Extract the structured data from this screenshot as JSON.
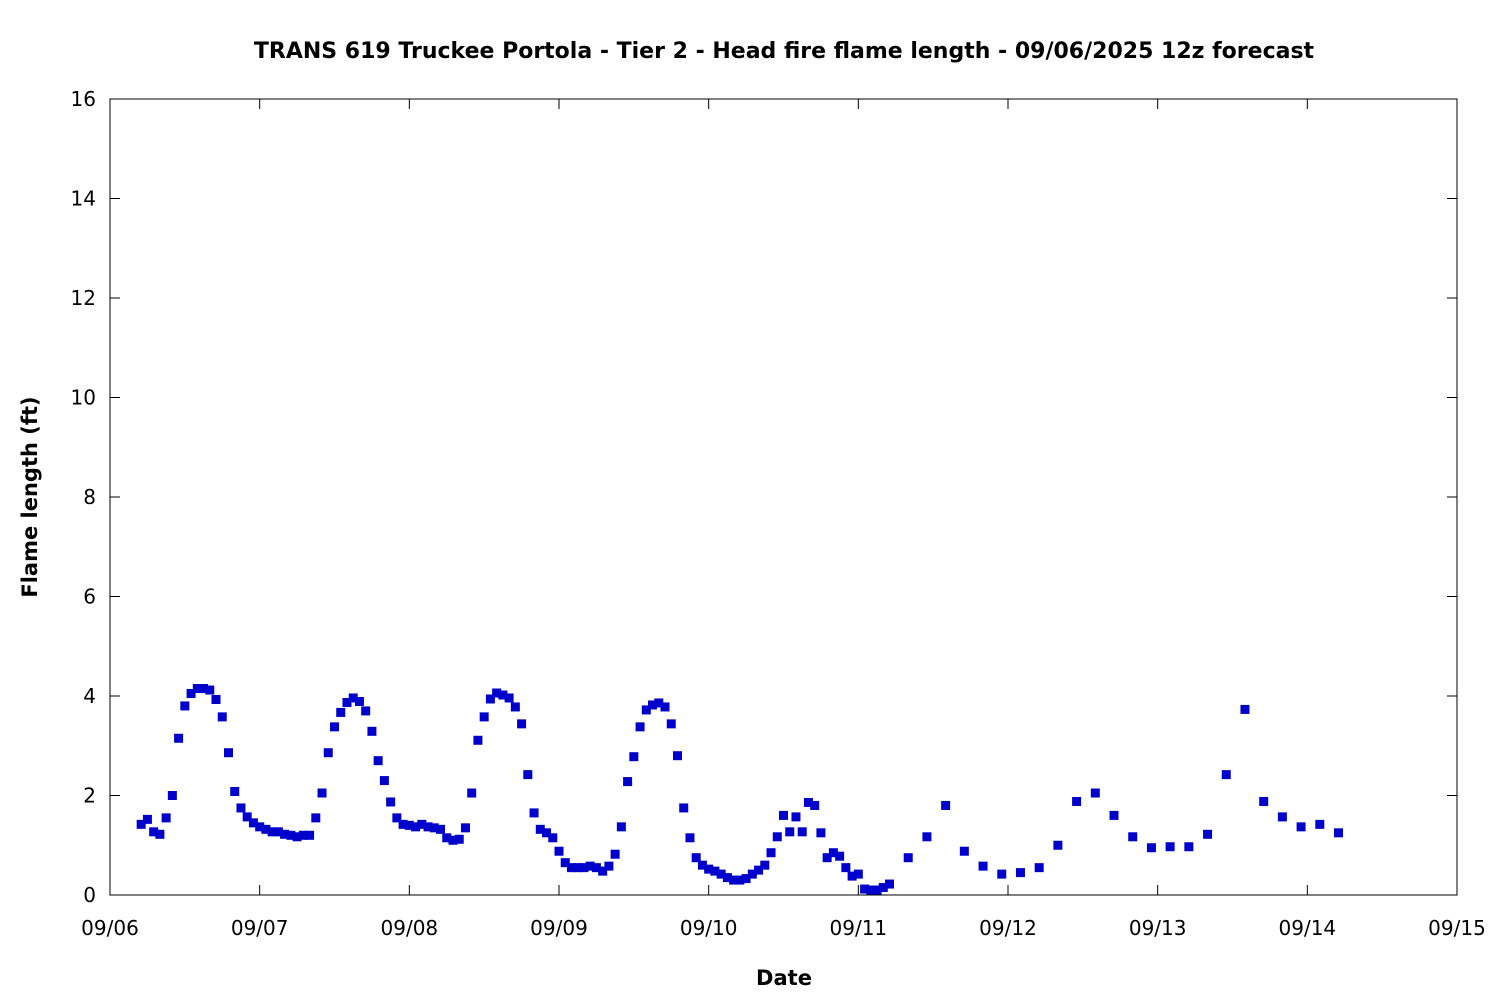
{
  "chart_data": {
    "type": "scatter",
    "title": "TRANS 619 Truckee Portola - Tier 2 - Head fire flame length - 09/06/2025 12z forecast",
    "xlabel": "Date",
    "ylabel": "Flame length (ft)",
    "x_axis_type": "date",
    "xlim": [
      "2025-09-06 00:00",
      "2025-09-15 00:00"
    ],
    "ylim": [
      0,
      16
    ],
    "x_ticks": [
      {
        "value": "2025-09-06",
        "label": "09/06"
      },
      {
        "value": "2025-09-07",
        "label": "09/07"
      },
      {
        "value": "2025-09-08",
        "label": "09/08"
      },
      {
        "value": "2025-09-09",
        "label": "09/09"
      },
      {
        "value": "2025-09-10",
        "label": "09/10"
      },
      {
        "value": "2025-09-11",
        "label": "09/11"
      },
      {
        "value": "2025-09-12",
        "label": "09/12"
      },
      {
        "value": "2025-09-13",
        "label": "09/13"
      },
      {
        "value": "2025-09-14",
        "label": "09/14"
      },
      {
        "value": "2025-09-15",
        "label": "09/15"
      }
    ],
    "y_ticks": [
      0,
      2,
      4,
      6,
      8,
      10,
      12,
      14,
      16
    ],
    "grid": false,
    "marker_color": "#0000cc",
    "series": [
      {
        "points": [
          [
            "2025-09-06 05:00",
            1.42
          ],
          [
            "2025-09-06 06:00",
            1.52
          ],
          [
            "2025-09-06 07:00",
            1.27
          ],
          [
            "2025-09-06 08:00",
            1.22
          ],
          [
            "2025-09-06 09:00",
            1.55
          ],
          [
            "2025-09-06 10:00",
            2.0
          ],
          [
            "2025-09-06 11:00",
            3.15
          ],
          [
            "2025-09-06 12:00",
            3.8
          ],
          [
            "2025-09-06 13:00",
            4.05
          ],
          [
            "2025-09-06 14:00",
            4.15
          ],
          [
            "2025-09-06 15:00",
            4.15
          ],
          [
            "2025-09-06 16:00",
            4.12
          ],
          [
            "2025-09-06 17:00",
            3.93
          ],
          [
            "2025-09-06 18:00",
            3.58
          ],
          [
            "2025-09-06 19:00",
            2.86
          ],
          [
            "2025-09-06 20:00",
            2.08
          ],
          [
            "2025-09-06 21:00",
            1.75
          ],
          [
            "2025-09-06 22:00",
            1.57
          ],
          [
            "2025-09-06 23:00",
            1.45
          ],
          [
            "2025-09-07 00:00",
            1.37
          ],
          [
            "2025-09-07 01:00",
            1.32
          ],
          [
            "2025-09-07 02:00",
            1.27
          ],
          [
            "2025-09-07 03:00",
            1.27
          ],
          [
            "2025-09-07 04:00",
            1.22
          ],
          [
            "2025-09-07 05:00",
            1.2
          ],
          [
            "2025-09-07 06:00",
            1.17
          ],
          [
            "2025-09-07 07:00",
            1.2
          ],
          [
            "2025-09-07 08:00",
            1.2
          ],
          [
            "2025-09-07 09:00",
            1.55
          ],
          [
            "2025-09-07 10:00",
            2.05
          ],
          [
            "2025-09-07 11:00",
            2.86
          ],
          [
            "2025-09-07 12:00",
            3.38
          ],
          [
            "2025-09-07 13:00",
            3.67
          ],
          [
            "2025-09-07 14:00",
            3.87
          ],
          [
            "2025-09-07 15:00",
            3.96
          ],
          [
            "2025-09-07 16:00",
            3.89
          ],
          [
            "2025-09-07 17:00",
            3.7
          ],
          [
            "2025-09-07 18:00",
            3.29
          ],
          [
            "2025-09-07 19:00",
            2.7
          ],
          [
            "2025-09-07 20:00",
            2.3
          ],
          [
            "2025-09-07 21:00",
            1.87
          ],
          [
            "2025-09-07 22:00",
            1.55
          ],
          [
            "2025-09-07 23:00",
            1.42
          ],
          [
            "2025-09-08 00:00",
            1.4
          ],
          [
            "2025-09-08 01:00",
            1.37
          ],
          [
            "2025-09-08 02:00",
            1.42
          ],
          [
            "2025-09-08 03:00",
            1.37
          ],
          [
            "2025-09-08 04:00",
            1.35
          ],
          [
            "2025-09-08 05:00",
            1.32
          ],
          [
            "2025-09-08 06:00",
            1.15
          ],
          [
            "2025-09-08 07:00",
            1.1
          ],
          [
            "2025-09-08 08:00",
            1.12
          ],
          [
            "2025-09-08 09:00",
            1.35
          ],
          [
            "2025-09-08 10:00",
            2.05
          ],
          [
            "2025-09-08 11:00",
            3.11
          ],
          [
            "2025-09-08 12:00",
            3.58
          ],
          [
            "2025-09-08 13:00",
            3.94
          ],
          [
            "2025-09-08 14:00",
            4.06
          ],
          [
            "2025-09-08 15:00",
            4.02
          ],
          [
            "2025-09-08 16:00",
            3.96
          ],
          [
            "2025-09-08 17:00",
            3.78
          ],
          [
            "2025-09-08 18:00",
            3.44
          ],
          [
            "2025-09-08 19:00",
            2.42
          ],
          [
            "2025-09-08 20:00",
            1.65
          ],
          [
            "2025-09-08 21:00",
            1.32
          ],
          [
            "2025-09-08 22:00",
            1.25
          ],
          [
            "2025-09-08 23:00",
            1.15
          ],
          [
            "2025-09-09 00:00",
            0.88
          ],
          [
            "2025-09-09 01:00",
            0.65
          ],
          [
            "2025-09-09 02:00",
            0.55
          ],
          [
            "2025-09-09 03:00",
            0.55
          ],
          [
            "2025-09-09 04:00",
            0.55
          ],
          [
            "2025-09-09 05:00",
            0.58
          ],
          [
            "2025-09-09 06:00",
            0.55
          ],
          [
            "2025-09-09 07:00",
            0.48
          ],
          [
            "2025-09-09 08:00",
            0.58
          ],
          [
            "2025-09-09 09:00",
            0.82
          ],
          [
            "2025-09-09 10:00",
            1.37
          ],
          [
            "2025-09-09 11:00",
            2.28
          ],
          [
            "2025-09-09 12:00",
            2.78
          ],
          [
            "2025-09-09 13:00",
            3.38
          ],
          [
            "2025-09-09 14:00",
            3.72
          ],
          [
            "2025-09-09 15:00",
            3.82
          ],
          [
            "2025-09-09 16:00",
            3.86
          ],
          [
            "2025-09-09 17:00",
            3.78
          ],
          [
            "2025-09-09 18:00",
            3.44
          ],
          [
            "2025-09-09 19:00",
            2.8
          ],
          [
            "2025-09-09 20:00",
            1.75
          ],
          [
            "2025-09-09 21:00",
            1.15
          ],
          [
            "2025-09-09 22:00",
            0.75
          ],
          [
            "2025-09-09 23:00",
            0.6
          ],
          [
            "2025-09-10 00:00",
            0.52
          ],
          [
            "2025-09-10 01:00",
            0.48
          ],
          [
            "2025-09-10 02:00",
            0.42
          ],
          [
            "2025-09-10 03:00",
            0.35
          ],
          [
            "2025-09-10 04:00",
            0.3
          ],
          [
            "2025-09-10 05:00",
            0.3
          ],
          [
            "2025-09-10 06:00",
            0.33
          ],
          [
            "2025-09-10 07:00",
            0.42
          ],
          [
            "2025-09-10 08:00",
            0.5
          ],
          [
            "2025-09-10 09:00",
            0.6
          ],
          [
            "2025-09-10 10:00",
            0.85
          ],
          [
            "2025-09-10 11:00",
            1.17
          ],
          [
            "2025-09-10 12:00",
            1.6
          ],
          [
            "2025-09-10 13:00",
            1.27
          ],
          [
            "2025-09-10 14:00",
            1.57
          ],
          [
            "2025-09-10 15:00",
            1.27
          ],
          [
            "2025-09-10 16:00",
            1.86
          ],
          [
            "2025-09-10 17:00",
            1.8
          ],
          [
            "2025-09-10 18:00",
            1.25
          ],
          [
            "2025-09-10 19:00",
            0.75
          ],
          [
            "2025-09-10 20:00",
            0.85
          ],
          [
            "2025-09-10 21:00",
            0.78
          ],
          [
            "2025-09-10 22:00",
            0.55
          ],
          [
            "2025-09-10 23:00",
            0.38
          ],
          [
            "2025-09-11 00:00",
            0.42
          ],
          [
            "2025-09-11 01:00",
            0.12
          ],
          [
            "2025-09-11 02:00",
            0.1
          ],
          [
            "2025-09-11 03:00",
            0.1
          ],
          [
            "2025-09-11 04:00",
            0.15
          ],
          [
            "2025-09-11 05:00",
            0.22
          ],
          [
            "2025-09-11 08:00",
            0.75
          ],
          [
            "2025-09-11 11:00",
            1.17
          ],
          [
            "2025-09-11 14:00",
            1.8
          ],
          [
            "2025-09-11 17:00",
            0.88
          ],
          [
            "2025-09-11 20:00",
            0.58
          ],
          [
            "2025-09-11 23:00",
            0.42
          ],
          [
            "2025-09-12 02:00",
            0.45
          ],
          [
            "2025-09-12 05:00",
            0.55
          ],
          [
            "2025-09-12 08:00",
            1.0
          ],
          [
            "2025-09-12 11:00",
            1.88
          ],
          [
            "2025-09-12 14:00",
            2.05
          ],
          [
            "2025-09-12 17:00",
            1.6
          ],
          [
            "2025-09-12 20:00",
            1.17
          ],
          [
            "2025-09-12 23:00",
            0.95
          ],
          [
            "2025-09-13 02:00",
            0.97
          ],
          [
            "2025-09-13 05:00",
            0.97
          ],
          [
            "2025-09-13 08:00",
            1.22
          ],
          [
            "2025-09-13 11:00",
            2.42
          ],
          [
            "2025-09-13 14:00",
            3.73
          ],
          [
            "2025-09-13 17:00",
            1.88
          ],
          [
            "2025-09-13 20:00",
            1.57
          ],
          [
            "2025-09-13 23:00",
            1.37
          ],
          [
            "2025-09-14 02:00",
            1.42
          ],
          [
            "2025-09-14 05:00",
            1.25
          ]
        ]
      }
    ]
  }
}
